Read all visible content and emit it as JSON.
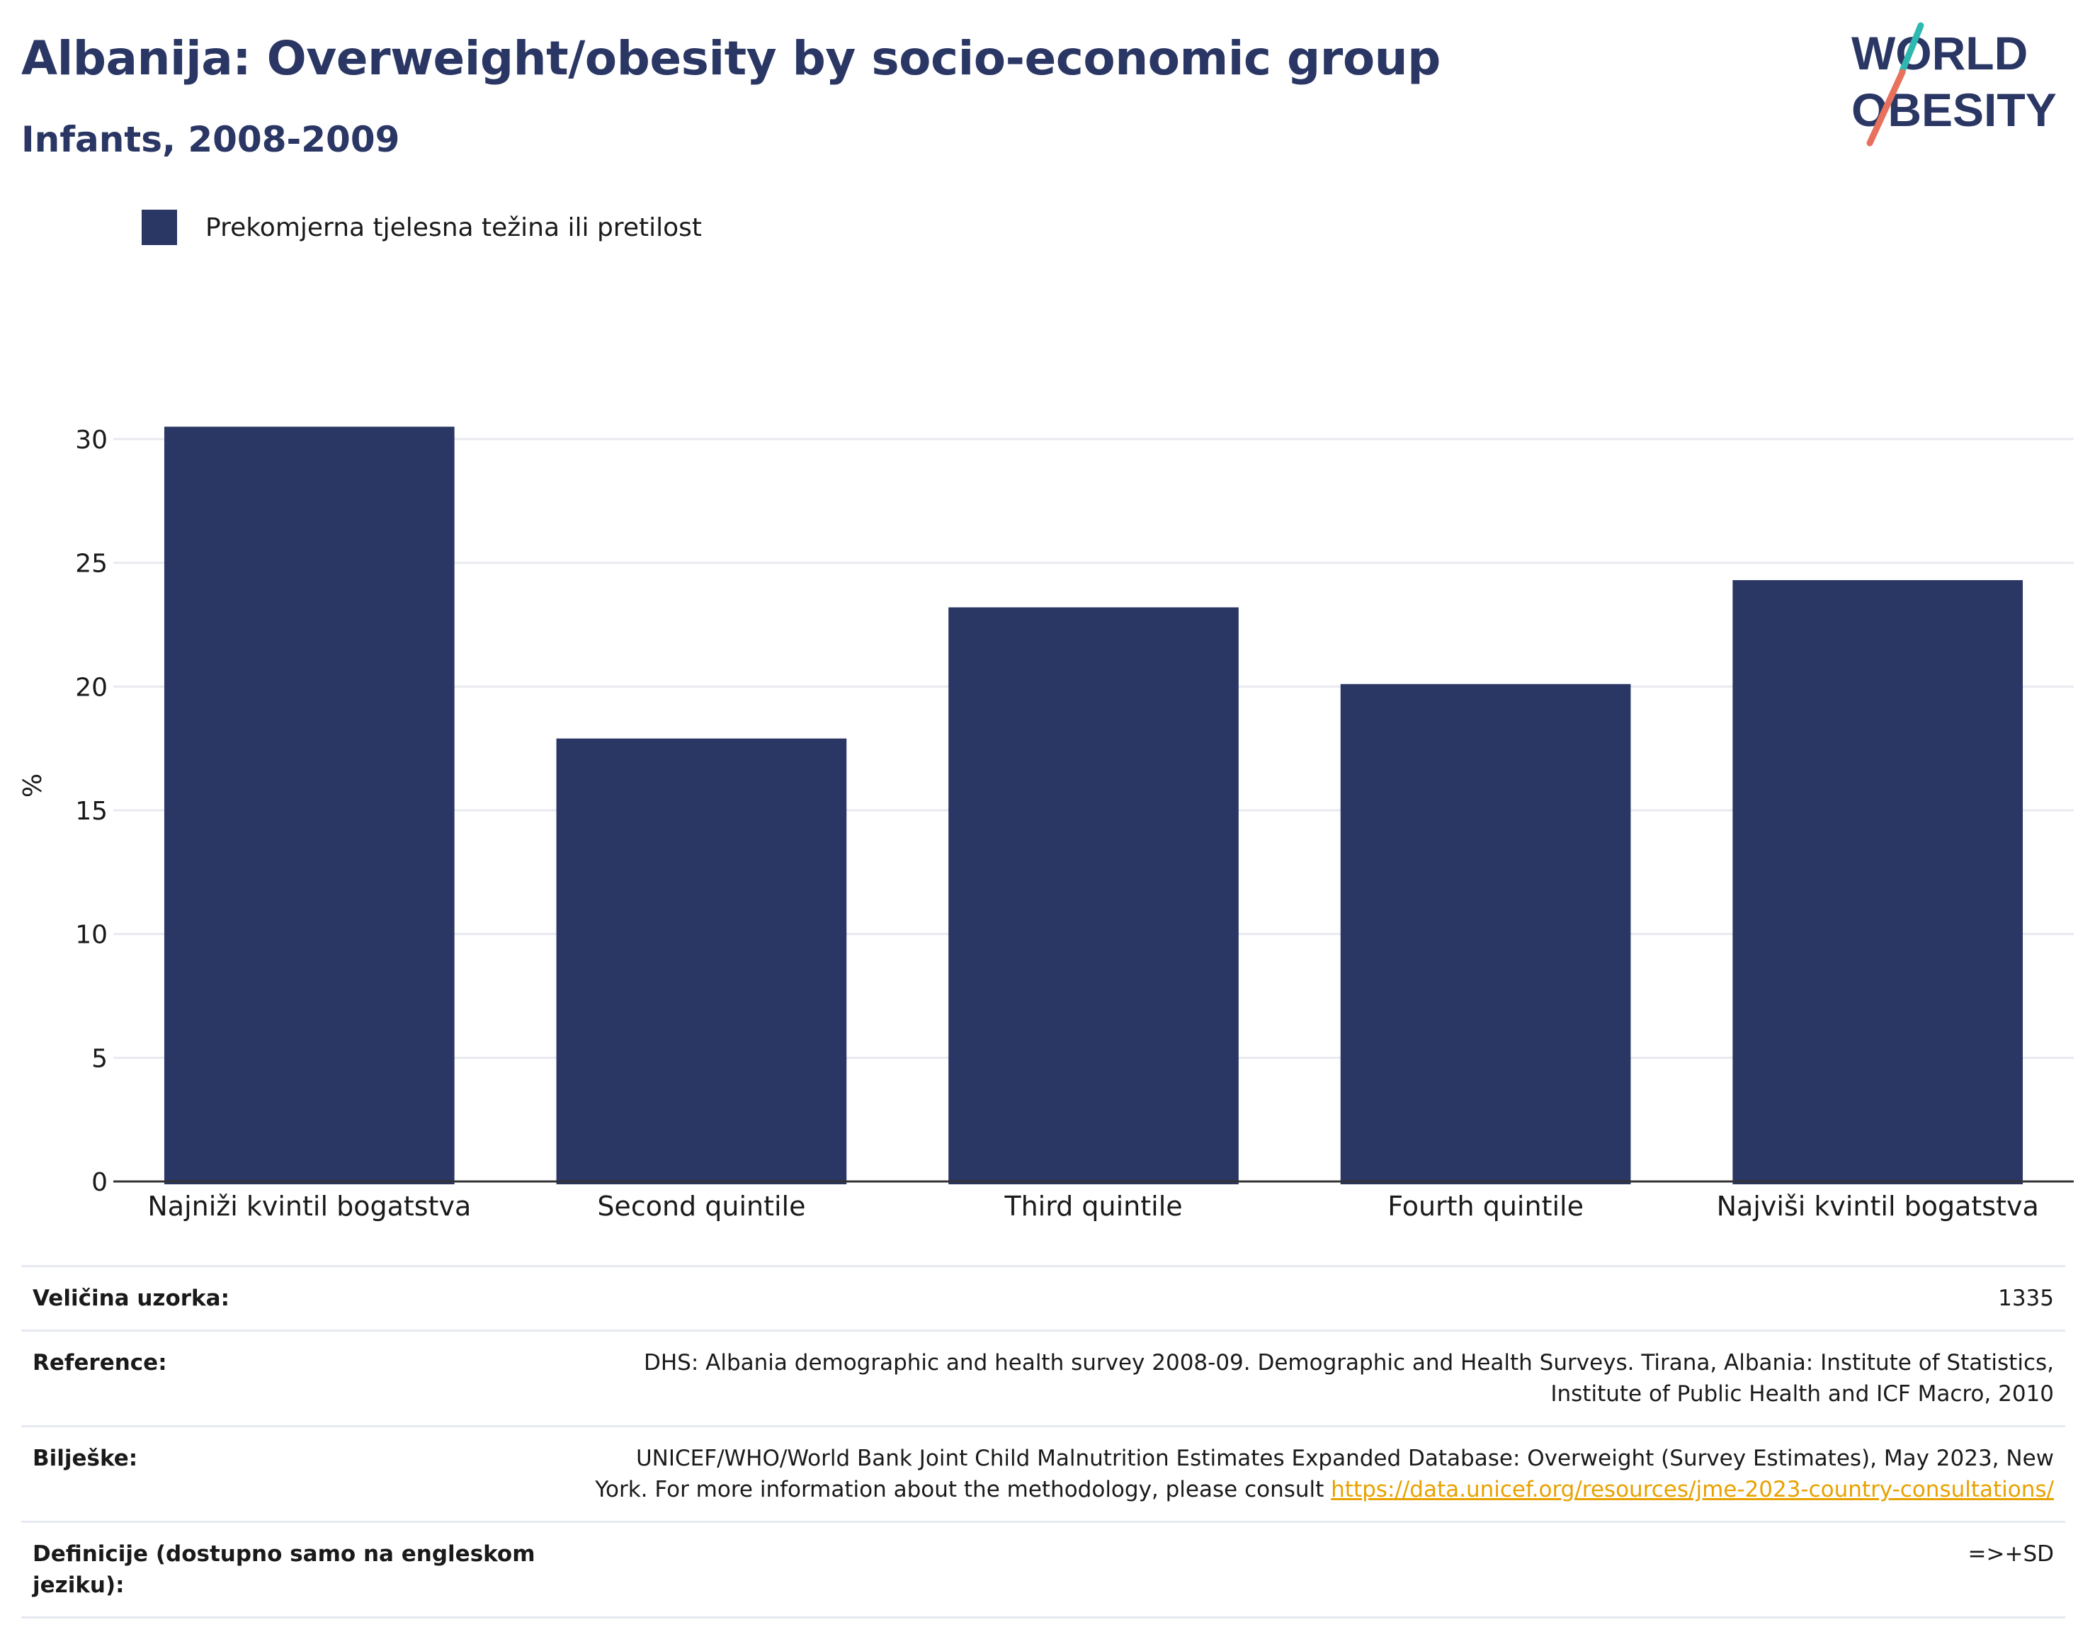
{
  "header": {
    "title": "Albanija: Overweight/obesity by socio-economic group",
    "subtitle": "Infants, 2008-2009"
  },
  "logo": {
    "line1": "WORLD",
    "line2": "OBESITY"
  },
  "legend": {
    "label": "Prekomjerna tjelesna težina ili pretilost"
  },
  "chart_data": {
    "type": "bar",
    "categories": [
      "Najniži kvintil bogatstva",
      "Second quintile",
      "Third quintile",
      "Fourth quintile",
      "Najviši kvintil bogatstva"
    ],
    "series": [
      {
        "name": "Prekomjerna tjelesna težina ili pretilost",
        "values": [
          30.5,
          17.9,
          23.2,
          20.1,
          24.3
        ],
        "color": "#2a3663"
      }
    ],
    "ylabel": "%",
    "ylim": [
      0,
      32
    ],
    "yticks": [
      0,
      5,
      10,
      15,
      20,
      25,
      30
    ],
    "grid": true,
    "legend_position": "top-left"
  },
  "meta": {
    "sample_size": {
      "key": "Veličina uzorka:",
      "value": "1335"
    },
    "reference": {
      "key": "Reference:",
      "value": "DHS: Albania demographic and health survey 2008-09. Demographic and Health Surveys. Tirana, Albania: Institute of Statistics, Institute of Public Health and ICF Macro, 2010"
    },
    "notes": {
      "key": "Bilješke:",
      "value": "UNICEF/WHO/World Bank Joint Child Malnutrition Estimates Expanded Database: Overweight (Survey Estimates), May 2023, New York. For more information about the methodology, please consult ",
      "link": "https://data.unicef.org/resources/jme-2023-country-consultations/"
    },
    "definitions": {
      "key": "Definicije (dostupno samo na engleskom jeziku):",
      "value": "=>+SD"
    }
  },
  "colors": {
    "navy": "#2a3663",
    "teal": "#2fb8b0",
    "coral": "#e8715e",
    "link": "#e8a200"
  }
}
